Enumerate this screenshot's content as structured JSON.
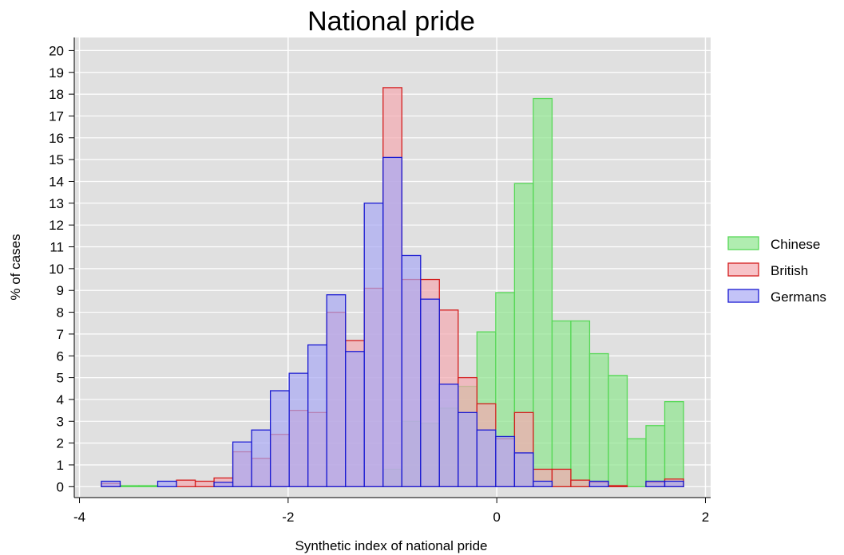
{
  "chart_data": {
    "type": "bar",
    "title": "National pride",
    "xlabel": "Synthetic index of national pride",
    "ylabel": "% of cases",
    "xlim": [
      -4.05,
      2.05
    ],
    "ylim": [
      -0.5,
      20.6
    ],
    "x_ticks": [
      -4,
      -2,
      0,
      2
    ],
    "y_ticks": [
      0,
      1,
      2,
      3,
      4,
      5,
      6,
      7,
      8,
      9,
      10,
      11,
      12,
      13,
      14,
      15,
      16,
      17,
      18,
      19,
      20
    ],
    "grid": true,
    "legend_position": "right",
    "bin_width": 0.18,
    "series": [
      {
        "name": "Chinese",
        "fill": "#8fe68f",
        "stroke": "#58d858",
        "bins": [
          {
            "x": -3.61,
            "value": 0.05
          },
          {
            "x": -3.43,
            "value": 0.05
          },
          {
            "x": -1.09,
            "value": 0.8
          },
          {
            "x": -0.91,
            "value": 3.0
          },
          {
            "x": -0.73,
            "value": 2.9
          },
          {
            "x": -0.55,
            "value": 3.6
          },
          {
            "x": -0.37,
            "value": 4.6
          },
          {
            "x": -0.19,
            "value": 7.1
          },
          {
            "x": -0.01,
            "value": 8.9
          },
          {
            "x": 0.17,
            "value": 13.9
          },
          {
            "x": 0.35,
            "value": 17.8
          },
          {
            "x": 0.53,
            "value": 7.6
          },
          {
            "x": 0.71,
            "value": 7.6
          },
          {
            "x": 0.89,
            "value": 6.1
          },
          {
            "x": 1.07,
            "value": 5.1
          },
          {
            "x": 1.25,
            "value": 2.2
          },
          {
            "x": 1.43,
            "value": 2.8
          },
          {
            "x": 1.61,
            "value": 3.9
          }
        ]
      },
      {
        "name": "British",
        "fill": "#f3aab0",
        "stroke": "#d41f1f",
        "bins": [
          {
            "x": -3.79,
            "value": 0.15
          },
          {
            "x": -3.07,
            "value": 0.3
          },
          {
            "x": -2.89,
            "value": 0.25
          },
          {
            "x": -2.71,
            "value": 0.4
          },
          {
            "x": -2.53,
            "value": 1.6
          },
          {
            "x": -2.35,
            "value": 1.3
          },
          {
            "x": -2.17,
            "value": 2.4
          },
          {
            "x": -1.99,
            "value": 3.5
          },
          {
            "x": -1.81,
            "value": 3.4
          },
          {
            "x": -1.63,
            "value": 8.0
          },
          {
            "x": -1.45,
            "value": 6.7
          },
          {
            "x": -1.27,
            "value": 9.1
          },
          {
            "x": -1.09,
            "value": 18.3
          },
          {
            "x": -0.91,
            "value": 9.5
          },
          {
            "x": -0.73,
            "value": 9.5
          },
          {
            "x": -0.55,
            "value": 8.1
          },
          {
            "x": -0.37,
            "value": 5.0
          },
          {
            "x": -0.19,
            "value": 3.8
          },
          {
            "x": -0.01,
            "value": 2.2
          },
          {
            "x": 0.17,
            "value": 3.4
          },
          {
            "x": 0.35,
            "value": 0.8
          },
          {
            "x": 0.53,
            "value": 0.8
          },
          {
            "x": 0.71,
            "value": 0.3
          },
          {
            "x": 0.89,
            "value": 0.2
          },
          {
            "x": 1.07,
            "value": 0.05
          },
          {
            "x": 1.43,
            "value": 0.2
          },
          {
            "x": 1.61,
            "value": 0.35
          }
        ]
      },
      {
        "name": "Germans",
        "fill": "#a9a9f3",
        "stroke": "#1a1ad2",
        "bins": [
          {
            "x": -3.79,
            "value": 0.25
          },
          {
            "x": -3.25,
            "value": 0.25
          },
          {
            "x": -2.71,
            "value": 0.2
          },
          {
            "x": -2.53,
            "value": 2.05
          },
          {
            "x": -2.35,
            "value": 2.6
          },
          {
            "x": -2.17,
            "value": 4.4
          },
          {
            "x": -1.99,
            "value": 5.2
          },
          {
            "x": -1.81,
            "value": 6.5
          },
          {
            "x": -1.63,
            "value": 8.8
          },
          {
            "x": -1.45,
            "value": 6.2
          },
          {
            "x": -1.27,
            "value": 13.0
          },
          {
            "x": -1.09,
            "value": 15.1
          },
          {
            "x": -0.91,
            "value": 10.6
          },
          {
            "x": -0.73,
            "value": 8.6
          },
          {
            "x": -0.55,
            "value": 4.7
          },
          {
            "x": -0.37,
            "value": 3.4
          },
          {
            "x": -0.19,
            "value": 2.6
          },
          {
            "x": -0.01,
            "value": 2.3
          },
          {
            "x": 0.17,
            "value": 1.55
          },
          {
            "x": 0.35,
            "value": 0.25
          },
          {
            "x": 0.89,
            "value": 0.25
          },
          {
            "x": 1.43,
            "value": 0.25
          },
          {
            "x": 1.61,
            "value": 0.25
          }
        ]
      }
    ]
  }
}
